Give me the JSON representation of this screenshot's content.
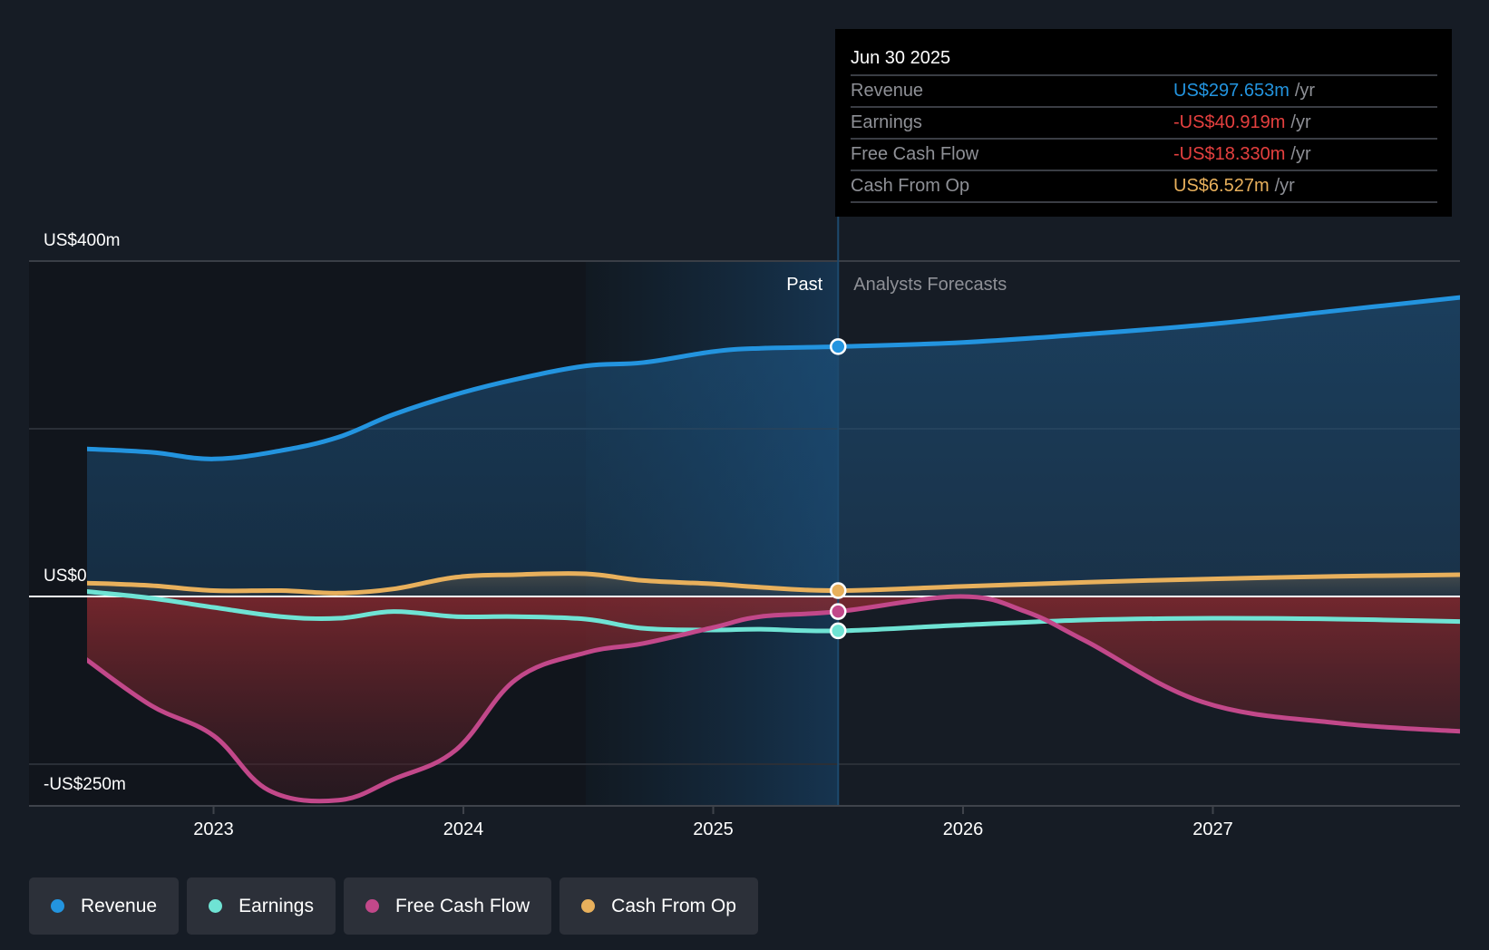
{
  "chart_data": {
    "type": "area",
    "title": "",
    "xlabel": "",
    "ylabel": "",
    "y_unit": "US$ millions",
    "ylim": [
      -250,
      400
    ],
    "y_tick_labels": [
      {
        "value": 400,
        "label": "US$400m"
      },
      {
        "value": 0,
        "label": "US$0"
      },
      {
        "value": -250,
        "label": "-US$250m"
      }
    ],
    "y_gridlines": [
      400,
      200,
      0,
      -200,
      -250
    ],
    "xlim": [
      2022.49,
      2028.0
    ],
    "x_ticks": [
      {
        "value": 2023,
        "label": "2023"
      },
      {
        "value": 2024,
        "label": "2024"
      },
      {
        "value": 2025,
        "label": "2025"
      },
      {
        "value": 2026,
        "label": "2026"
      },
      {
        "value": 2027,
        "label": "2027"
      }
    ],
    "grid": true,
    "legend_position": "bottom-left",
    "regions": {
      "past_label": "Past",
      "forecast_label": "Analysts Forecasts",
      "past_highlight_start": 2024.49,
      "divider": 2025.5
    },
    "series": [
      {
        "name": "Revenue",
        "color": "#2394df",
        "fill": true,
        "points": [
          [
            2022.49,
            176
          ],
          [
            2022.75,
            172
          ],
          [
            2023.0,
            164
          ],
          [
            2023.27,
            174
          ],
          [
            2023.5,
            190
          ],
          [
            2023.72,
            217
          ],
          [
            2023.97,
            241
          ],
          [
            2024.21,
            259
          ],
          [
            2024.49,
            275
          ],
          [
            2024.72,
            279
          ],
          [
            2025.0,
            292
          ],
          [
            2025.19,
            296
          ],
          [
            2025.5,
            298
          ],
          [
            2026.0,
            303
          ],
          [
            2026.5,
            313
          ],
          [
            2027.0,
            325
          ],
          [
            2027.5,
            341
          ],
          [
            2028.0,
            357
          ]
        ]
      },
      {
        "name": "Earnings",
        "color": "#6fe3d4",
        "fill": false,
        "points": [
          [
            2022.49,
            6
          ],
          [
            2022.75,
            -2
          ],
          [
            2023.0,
            -13
          ],
          [
            2023.27,
            -24
          ],
          [
            2023.5,
            -26
          ],
          [
            2023.72,
            -18
          ],
          [
            2023.97,
            -24
          ],
          [
            2024.21,
            -24
          ],
          [
            2024.49,
            -27
          ],
          [
            2024.72,
            -38
          ],
          [
            2025.0,
            -40
          ],
          [
            2025.19,
            -39
          ],
          [
            2025.5,
            -41
          ],
          [
            2026.0,
            -34
          ],
          [
            2026.5,
            -28
          ],
          [
            2027.0,
            -26
          ],
          [
            2027.5,
            -27
          ],
          [
            2028.0,
            -30
          ]
        ]
      },
      {
        "name": "Free Cash Flow",
        "color": "#c2488a",
        "fill": true,
        "points": [
          [
            2022.49,
            -75
          ],
          [
            2022.75,
            -130
          ],
          [
            2023.0,
            -166
          ],
          [
            2023.22,
            -231
          ],
          [
            2023.5,
            -243
          ],
          [
            2023.72,
            -218
          ],
          [
            2023.97,
            -183
          ],
          [
            2024.21,
            -99
          ],
          [
            2024.49,
            -67
          ],
          [
            2024.72,
            -56
          ],
          [
            2025.0,
            -37
          ],
          [
            2025.19,
            -24
          ],
          [
            2025.5,
            -18
          ],
          [
            2025.99,
            0
          ],
          [
            2026.25,
            -18
          ],
          [
            2026.49,
            -53
          ],
          [
            2026.96,
            -126
          ],
          [
            2027.5,
            -151
          ],
          [
            2028.0,
            -161
          ]
        ]
      },
      {
        "name": "Cash From Op",
        "color": "#e8b05c",
        "fill": true,
        "points": [
          [
            2022.49,
            16
          ],
          [
            2022.75,
            13
          ],
          [
            2023.0,
            7
          ],
          [
            2023.27,
            7
          ],
          [
            2023.5,
            4
          ],
          [
            2023.72,
            9
          ],
          [
            2023.97,
            23
          ],
          [
            2024.21,
            26
          ],
          [
            2024.49,
            27
          ],
          [
            2024.72,
            19
          ],
          [
            2025.0,
            15
          ],
          [
            2025.19,
            11
          ],
          [
            2025.5,
            7
          ],
          [
            2026.0,
            12
          ],
          [
            2026.5,
            17
          ],
          [
            2027.0,
            21
          ],
          [
            2027.5,
            24
          ],
          [
            2028.0,
            26
          ]
        ]
      }
    ],
    "highlight_date": 2025.5
  },
  "tooltip": {
    "date": "Jun 30 2025",
    "rows": [
      {
        "label": "Revenue",
        "value": "US$297.653m",
        "unit": "/yr",
        "color": "#2394df"
      },
      {
        "label": "Earnings",
        "value": "-US$40.919m",
        "unit": "/yr",
        "color": "#e5403f"
      },
      {
        "label": "Free Cash Flow",
        "value": "-US$18.330m",
        "unit": "/yr",
        "color": "#e5403f"
      },
      {
        "label": "Cash From Op",
        "value": "US$6.527m",
        "unit": "/yr",
        "color": "#e8b05c"
      }
    ]
  },
  "legend": [
    {
      "label": "Revenue",
      "color": "#2394df"
    },
    {
      "label": "Earnings",
      "color": "#6fe3d4"
    },
    {
      "label": "Free Cash Flow",
      "color": "#c2488a"
    },
    {
      "label": "Cash From Op",
      "color": "#e8b05c"
    }
  ]
}
